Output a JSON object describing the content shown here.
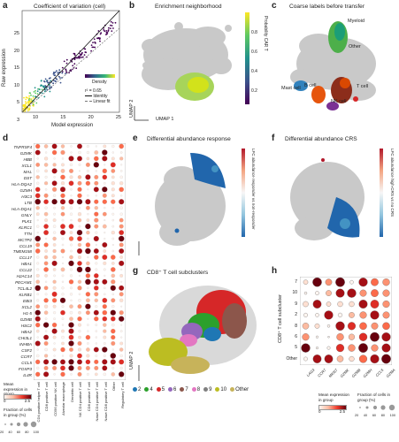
{
  "panels": {
    "a": {
      "label": "a",
      "title": "Coefficient of variation (cell)",
      "xlabel": "Model expression",
      "ylabel": "Raw expression",
      "xticks": [
        "10",
        "15",
        "20",
        "25"
      ],
      "yticks": [
        "25",
        "20",
        "15",
        "10",
        "5",
        "3"
      ],
      "colorbar_label": "Density",
      "stat": "r² = 0.65",
      "legend": [
        "Identity",
        "Linear fit"
      ]
    },
    "b": {
      "label": "b",
      "title": "Enrichment neighborhood",
      "axis_x": "UMAP 1",
      "axis_y": "UMAP 2",
      "colorbar_label": "Probability CAR T",
      "colorbar_ticks": [
        "0.8",
        "0.6",
        "0.4",
        "0.2"
      ]
    },
    "c": {
      "label": "c",
      "title": "Coarse labels before transfer",
      "clusters": [
        "Myeloid",
        "Other",
        "T cell",
        "Mast cell",
        "B cell",
        "NK cell"
      ]
    },
    "d": {
      "label": "d",
      "genes": [
        "TNFRSF4",
        "GZMK",
        "HBB",
        "XCL1",
        "MAL",
        "DST",
        "HLA-DQA2",
        "GZMH",
        "H3C3",
        "LTB",
        "HLA-DQA1",
        "GNLY",
        "PLK1",
        "KLRC1",
        "TTN",
        "MCTP2",
        "CCL19",
        "TMEM158",
        "CCL17",
        "HBA1",
        "CCL22",
        "H2AC14",
        "PECAM1",
        "TCL4L2",
        "KLRB1",
        "EBI3",
        "XCL2",
        "H1-5",
        "GZMB",
        "HSC2",
        "HBA2",
        "CHI3L1",
        "INHBA",
        "CSF2",
        "CCR7",
        "CCL5",
        "FOXP3",
        "IL4R"
      ],
      "cell_types": [
        "CD4 positive helper T cell",
        "CD8 positive T cell",
        "CD56 positive NK cell",
        "Alveolar macrophage",
        "Dendritic cell",
        "NK CD4 positive T cell",
        "CD8 positive T cell",
        "Naive CD4 positive T cell",
        "Naive CD8 positive T cell",
        "Other",
        "Regulatory T cell"
      ],
      "legend_expr": "Mean expression in group",
      "legend_expr_ticks": [
        "0",
        "2.5"
      ],
      "legend_frac": "Fraction of cells in group (%)",
      "legend_frac_ticks": [
        "20",
        "40",
        "60",
        "80",
        "100"
      ]
    },
    "e": {
      "label": "e",
      "title": "Differential abundance response",
      "colorbar_label": "LFC abundance responder vs non-responder"
    },
    "f": {
      "label": "f",
      "title": "Differential abundance CRS",
      "colorbar_label": "LFC abundance high-CRS vs no CRS"
    },
    "g": {
      "label": "g",
      "title": "CD8⁺ T cell subclusters",
      "legend": [
        {
          "name": "2",
          "color": "#1f77b4"
        },
        {
          "name": "4",
          "color": "#2ca02c"
        },
        {
          "name": "5",
          "color": "#d62728"
        },
        {
          "name": "6",
          "color": "#9467bd"
        },
        {
          "name": "7",
          "color": "#8c564b"
        },
        {
          "name": "8",
          "color": "#e377c2"
        },
        {
          "name": "9",
          "color": "#7f7f7f"
        },
        {
          "name": "10",
          "color": "#bcbd22"
        },
        {
          "name": "Other",
          "color": "#c7b35a"
        }
      ]
    },
    "h": {
      "label": "h",
      "ylabel": "CD8⁺ T cell subcluster",
      "rows": [
        "7",
        "10",
        "9",
        "2",
        "8",
        "6",
        "5",
        "Other"
      ],
      "genes": [
        "LAG3",
        "CCR7",
        "MKI67",
        "GZMK",
        "GZMB",
        "GZMH",
        "CCL5",
        "GZMA"
      ],
      "legend_expr": "Mean expression in group",
      "legend_expr_ticks": [
        "0",
        "2.5"
      ],
      "legend_frac": "Fraction of cells in group (%)",
      "legend_frac_ticks": [
        "20",
        "40",
        "60",
        "80",
        "100"
      ]
    }
  },
  "colors": {
    "red_dark": "#67000d",
    "red": "#cb181d",
    "red_light": "#fcbba1",
    "blue": "#2166ac",
    "gray_umap": "#c9c9c9"
  }
}
